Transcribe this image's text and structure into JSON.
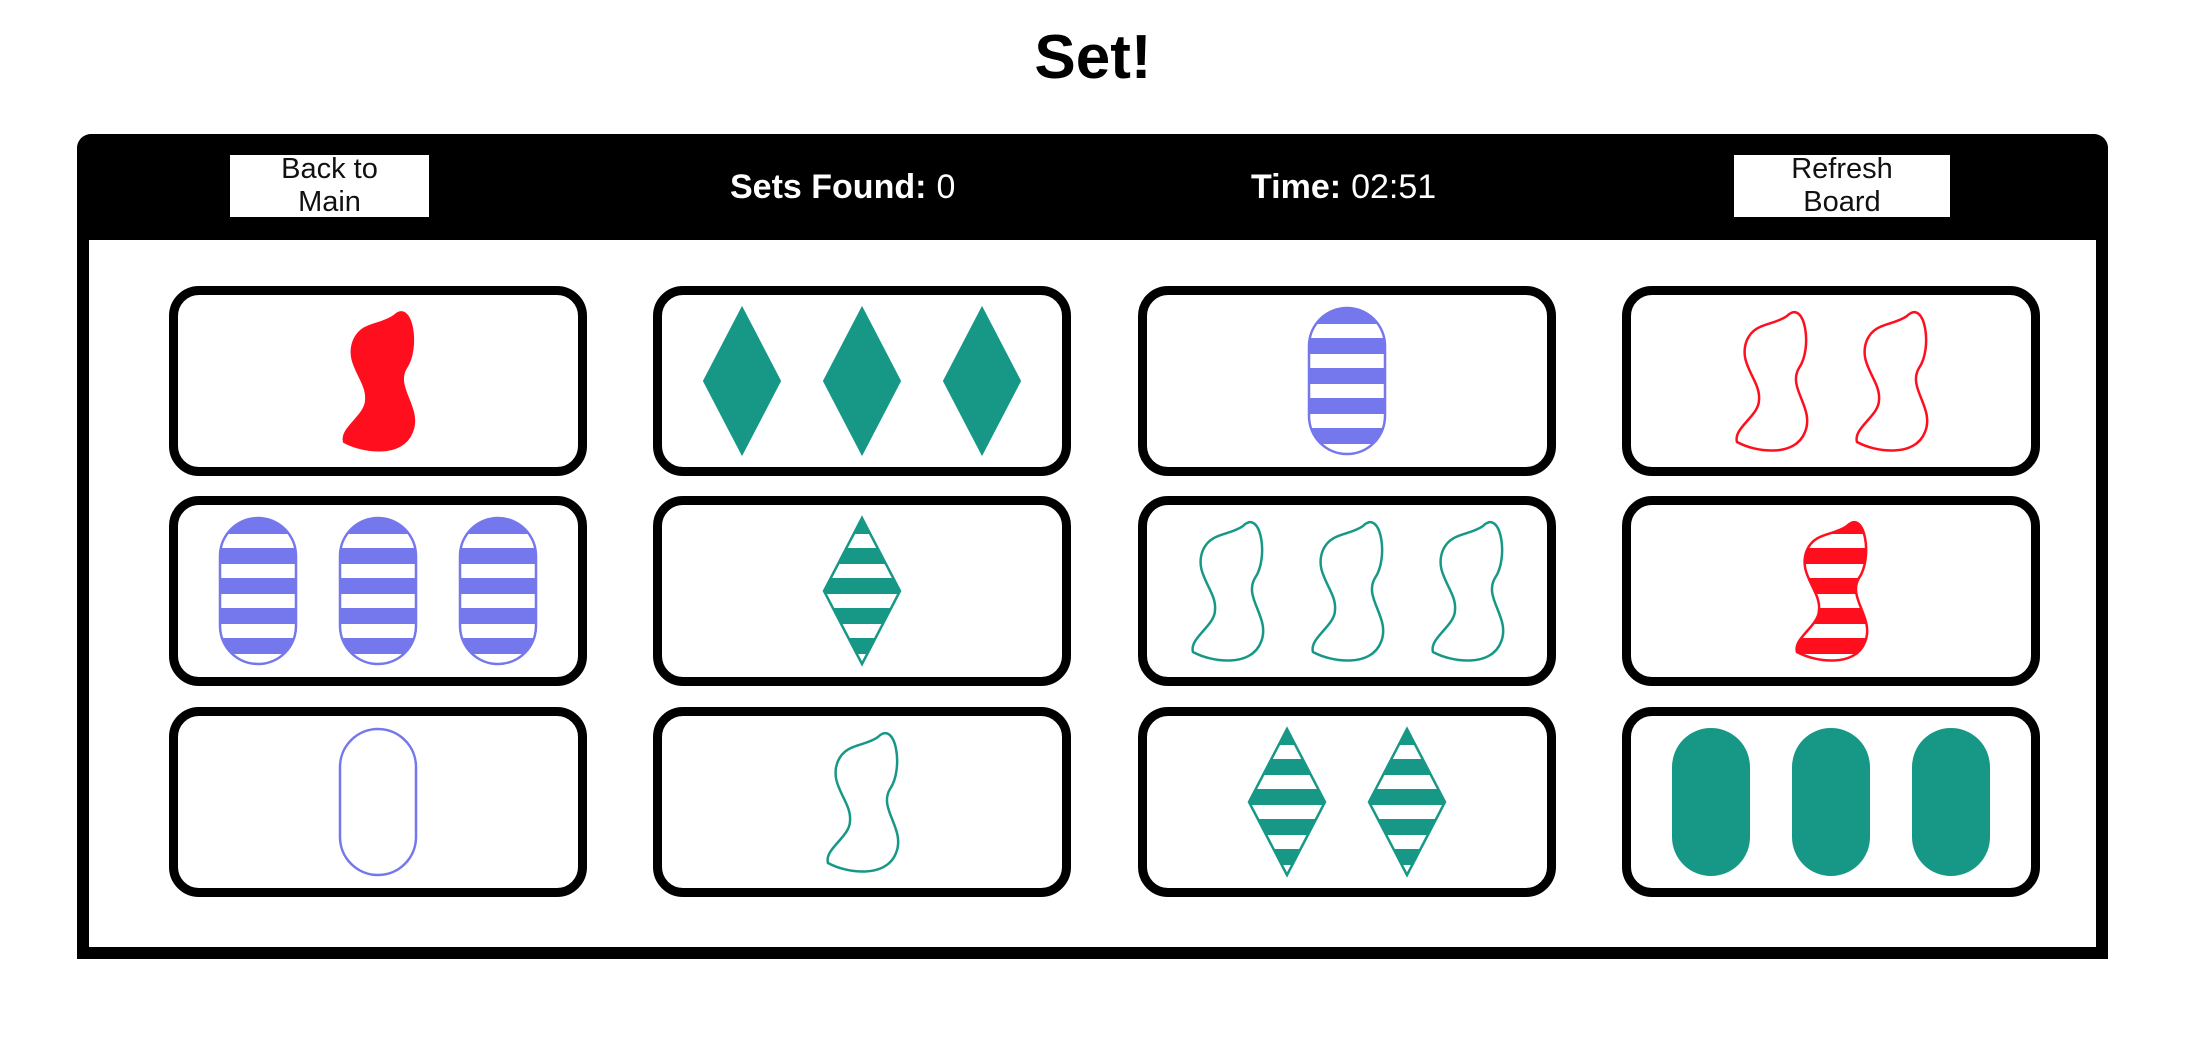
{
  "title": "Set!",
  "header": {
    "back_label": "Back to Main",
    "sets_found_label": "Sets Found:",
    "sets_found_value": "0",
    "time_label": "Time:",
    "time_value": "02:51",
    "refresh_label": "Refresh Board"
  },
  "colors": {
    "red": "#ff0f1e",
    "purple": "#7577ec",
    "green": "#179887"
  },
  "cards": [
    {
      "count": 1,
      "shape": "squiggle",
      "color": "red",
      "fill": "solid"
    },
    {
      "count": 3,
      "shape": "diamond",
      "color": "green",
      "fill": "solid"
    },
    {
      "count": 1,
      "shape": "oval",
      "color": "purple",
      "fill": "striped"
    },
    {
      "count": 2,
      "shape": "squiggle",
      "color": "red",
      "fill": "outline"
    },
    {
      "count": 3,
      "shape": "oval",
      "color": "purple",
      "fill": "striped"
    },
    {
      "count": 1,
      "shape": "diamond",
      "color": "green",
      "fill": "striped"
    },
    {
      "count": 3,
      "shape": "squiggle",
      "color": "green",
      "fill": "outline"
    },
    {
      "count": 1,
      "shape": "squiggle",
      "color": "red",
      "fill": "striped"
    },
    {
      "count": 1,
      "shape": "oval",
      "color": "purple",
      "fill": "outline"
    },
    {
      "count": 1,
      "shape": "squiggle",
      "color": "green",
      "fill": "outline"
    },
    {
      "count": 2,
      "shape": "diamond",
      "color": "green",
      "fill": "striped"
    },
    {
      "count": 3,
      "shape": "oval",
      "color": "green",
      "fill": "solid"
    }
  ]
}
